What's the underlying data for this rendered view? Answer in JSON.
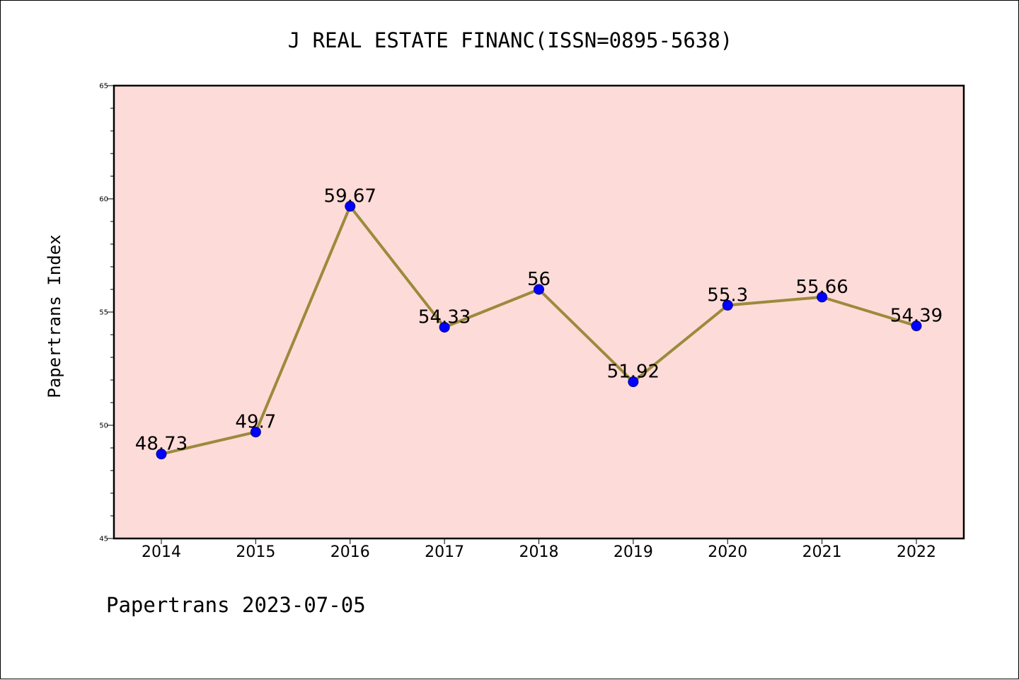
{
  "chart_data": {
    "type": "line",
    "title": "J REAL ESTATE FINANC(ISSN=0895-5638)",
    "xlabel": "",
    "ylabel": "Papertrans Index",
    "categories": [
      "2014",
      "2015",
      "2016",
      "2017",
      "2018",
      "2019",
      "2020",
      "2021",
      "2022"
    ],
    "series": [
      {
        "values": [
          48.73,
          49.7,
          59.67,
          54.33,
          56,
          51.92,
          55.3,
          55.66,
          54.39
        ],
        "labels": [
          "48.73",
          "49.7",
          "59.67",
          "54.33",
          "56",
          "51.92",
          "55.3",
          "55.66",
          "54.39"
        ]
      }
    ],
    "ylim": [
      45,
      65
    ],
    "yticks": [
      "45",
      "50",
      "55",
      "60",
      "65"
    ],
    "grid": false,
    "legend": "none",
    "footer": "Papertrans 2023-07-05",
    "colors": {
      "plot_background": "#fddbd8",
      "line": "#9b8a3c",
      "marker": "#0000ff",
      "marker_edge": "#00008b",
      "axis": "#000000",
      "text": "#000000"
    }
  }
}
